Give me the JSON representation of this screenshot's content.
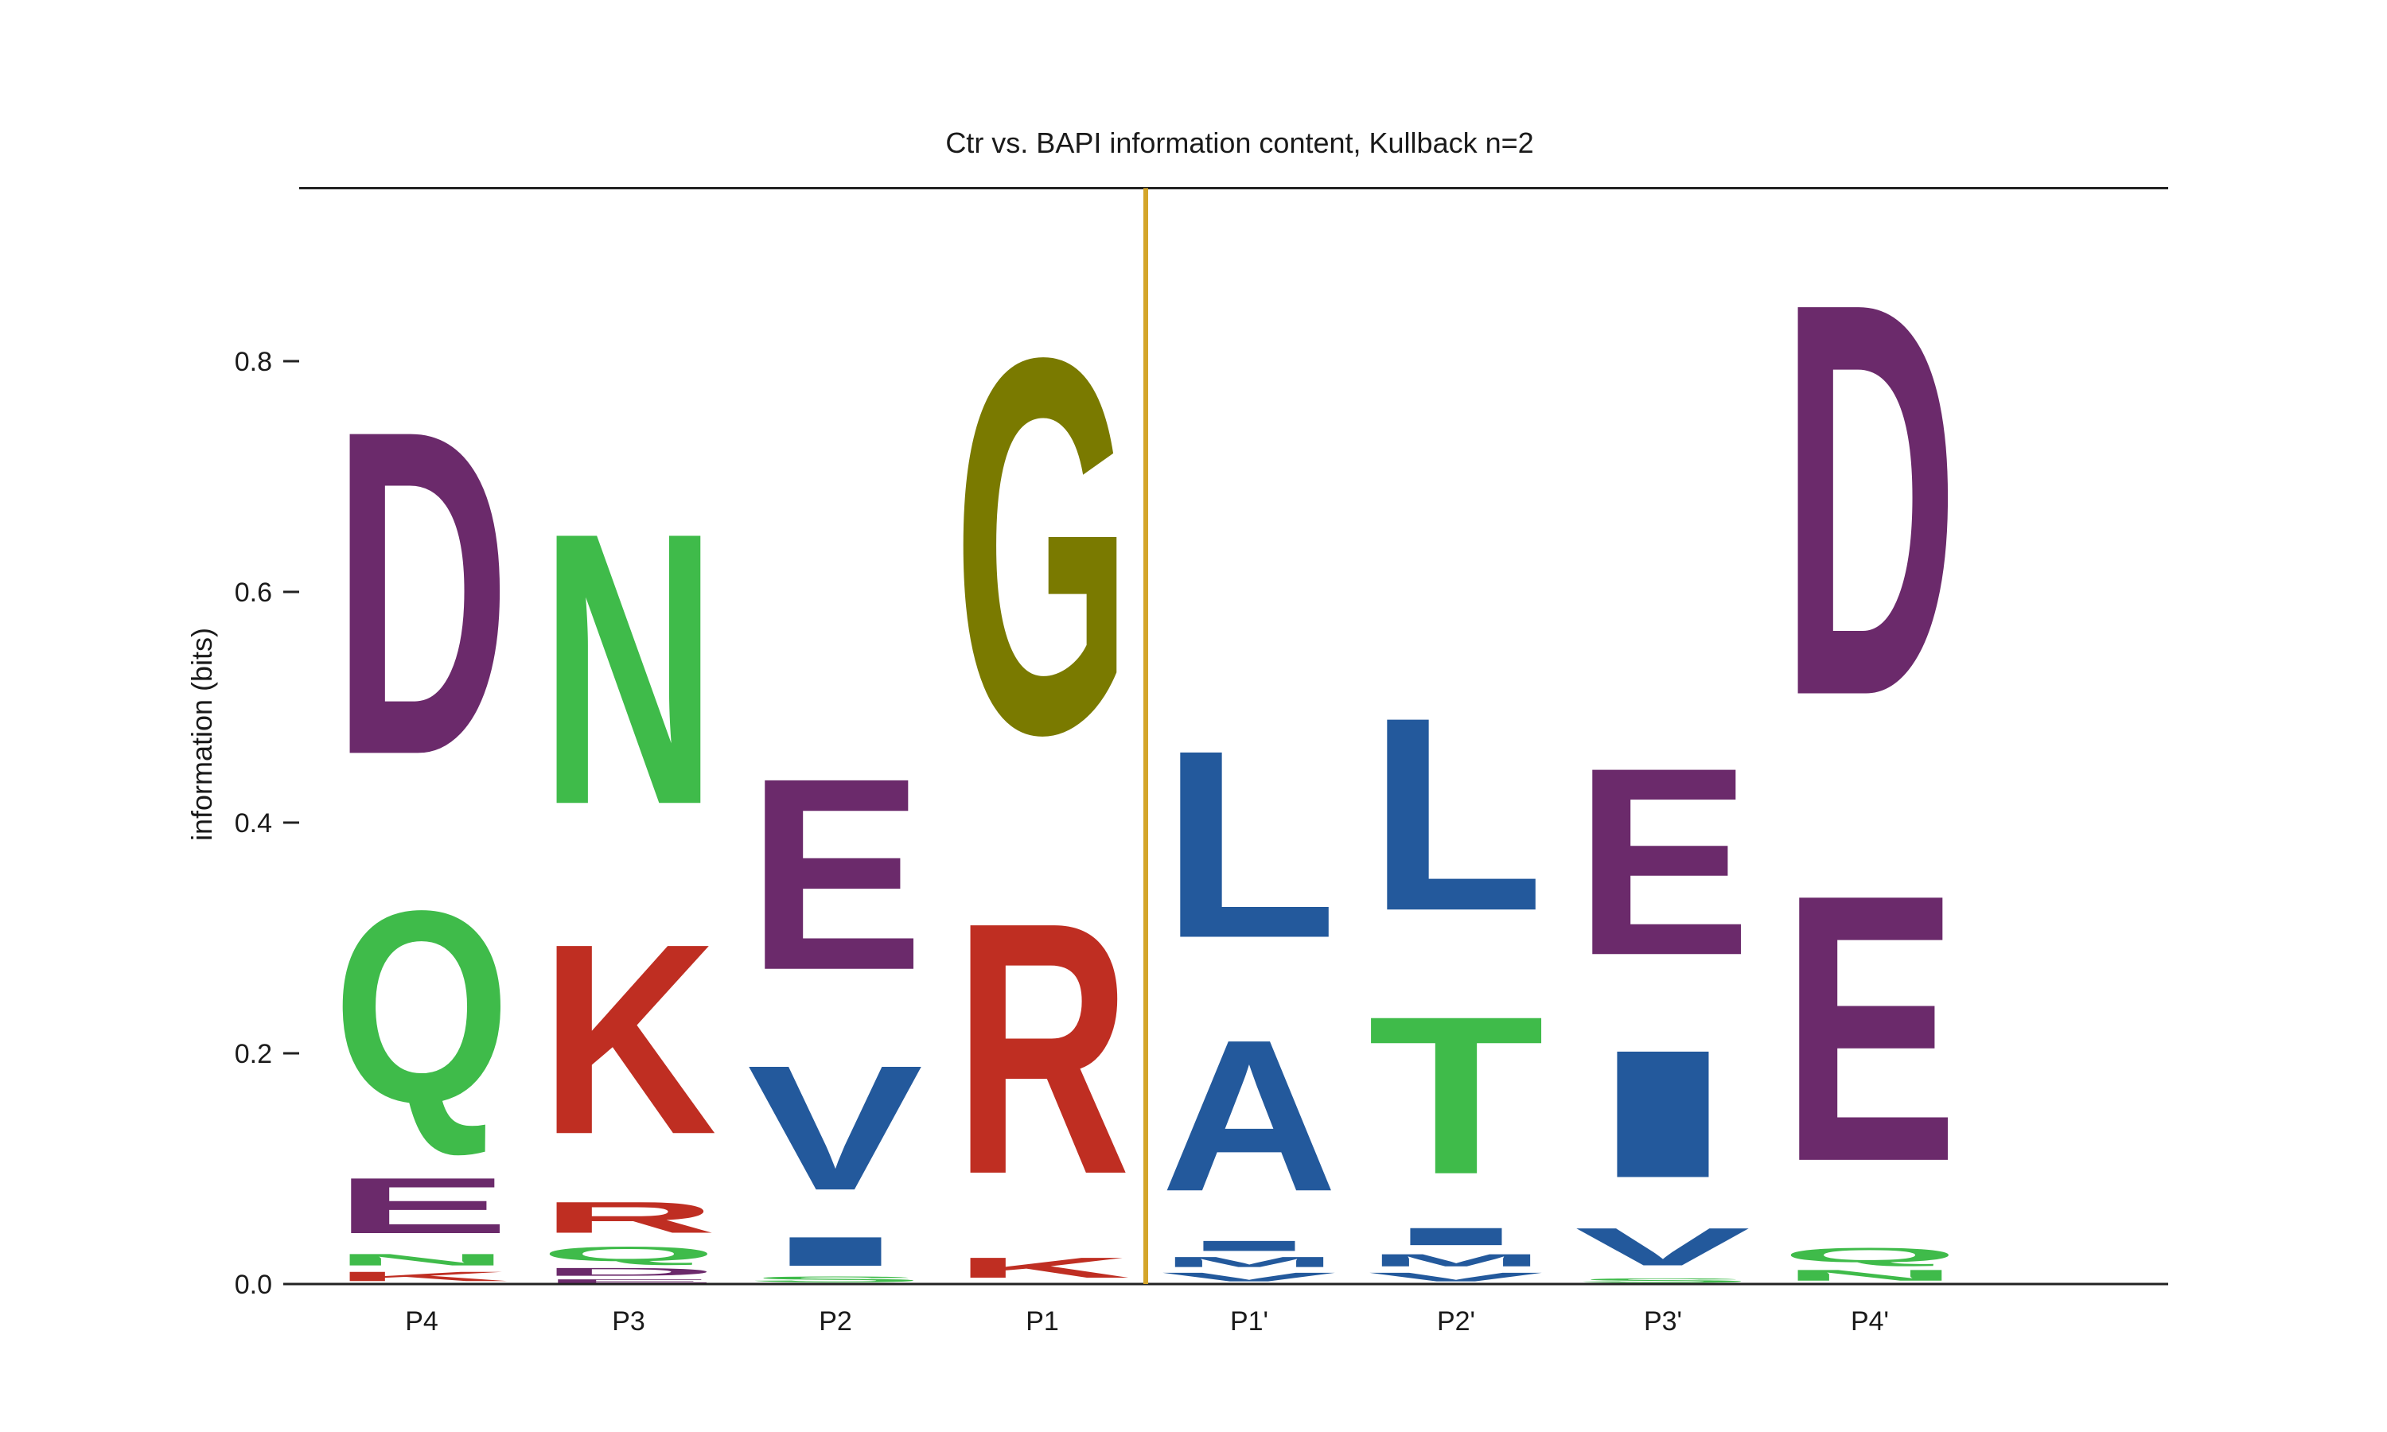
{
  "chart_data": {
    "type": "sequence-logo",
    "title": "Ctr vs. BAPI information content, Kullback n=2",
    "ylabel": "information (bits)",
    "xlabel": "",
    "ylim": [
      0,
      0.95
    ],
    "yticks": [
      "0.0",
      "0.2",
      "0.4",
      "0.6",
      "0.8"
    ],
    "positions": [
      "P4",
      "P3",
      "P2",
      "P1",
      "P1'",
      "P2'",
      "P3'",
      "P4'"
    ],
    "cleavage_marker": {
      "between": [
        "P1",
        "P1'"
      ],
      "color": "#d4a52a"
    },
    "colors": {
      "acidic": "#6b2a6b",
      "polar": "#3fbb4a",
      "basic": "#bf2e22",
      "hydrophobic": "#23599c",
      "glycine": "#7a7a00"
    },
    "stacks": [
      {
        "position": "P4",
        "letters": [
          {
            "letter": "K",
            "from": 0.0,
            "to": 0.013,
            "color": "#bf2e22"
          },
          {
            "letter": "N",
            "from": 0.013,
            "to": 0.029,
            "color": "#3fbb4a"
          },
          {
            "letter": "E",
            "from": 0.029,
            "to": 0.106,
            "color": "#6b2a6b"
          },
          {
            "letter": "Q",
            "from": 0.106,
            "to": 0.372,
            "color": "#3fbb4a"
          },
          {
            "letter": "D",
            "from": 0.372,
            "to": 0.822,
            "color": "#6b2a6b"
          }
        ]
      },
      {
        "position": "P3",
        "letters": [
          {
            "letter": "E",
            "from": 0.0,
            "to": 0.005,
            "color": "#6b2a6b"
          },
          {
            "letter": "D",
            "from": 0.005,
            "to": 0.016,
            "color": "#6b2a6b"
          },
          {
            "letter": "Q",
            "from": 0.016,
            "to": 0.036,
            "color": "#3fbb4a"
          },
          {
            "letter": "R",
            "from": 0.036,
            "to": 0.079,
            "color": "#bf2e22"
          },
          {
            "letter": "K",
            "from": 0.079,
            "to": 0.343,
            "color": "#bf2e22"
          },
          {
            "letter": "N",
            "from": 0.343,
            "to": 0.72,
            "color": "#3fbb4a"
          }
        ]
      },
      {
        "position": "P2",
        "letters": [
          {
            "letter": "S",
            "from": 0.0,
            "to": 0.008,
            "color": "#3fbb4a"
          },
          {
            "letter": "I",
            "from": 0.008,
            "to": 0.048,
            "color": "#23599c"
          },
          {
            "letter": "V",
            "from": 0.048,
            "to": 0.221,
            "color": "#23599c"
          },
          {
            "letter": "E",
            "from": 0.221,
            "to": 0.487,
            "color": "#6b2a6b"
          }
        ]
      },
      {
        "position": "P1",
        "letters": [
          {
            "letter": "K",
            "from": 0.0,
            "to": 0.028,
            "color": "#bf2e22"
          },
          {
            "letter": "R",
            "from": 0.028,
            "to": 0.377,
            "color": "#bf2e22"
          },
          {
            "letter": "G",
            "from": 0.377,
            "to": 0.897,
            "color": "#7a7a00"
          }
        ]
      },
      {
        "position": "P1'",
        "letters": [
          {
            "letter": "V",
            "from": 0.0,
            "to": 0.012,
            "color": "#23599c"
          },
          {
            "letter": "M",
            "from": 0.012,
            "to": 0.026,
            "color": "#23599c"
          },
          {
            "letter": "I",
            "from": 0.026,
            "to": 0.04,
            "color": "#23599c"
          },
          {
            "letter": "A",
            "from": 0.04,
            "to": 0.25,
            "color": "#23599c"
          },
          {
            "letter": "L",
            "from": 0.25,
            "to": 0.51,
            "color": "#23599c"
          }
        ]
      },
      {
        "position": "P2'",
        "letters": [
          {
            "letter": "V",
            "from": 0.0,
            "to": 0.012,
            "color": "#23599c"
          },
          {
            "letter": "M",
            "from": 0.012,
            "to": 0.029,
            "color": "#23599c"
          },
          {
            "letter": "I",
            "from": 0.029,
            "to": 0.053,
            "color": "#23599c"
          },
          {
            "letter": "T",
            "from": 0.053,
            "to": 0.272,
            "color": "#3fbb4a"
          },
          {
            "letter": "L",
            "from": 0.272,
            "to": 0.54,
            "color": "#23599c"
          }
        ]
      },
      {
        "position": "P3'",
        "letters": [
          {
            "letter": "S",
            "from": 0.0,
            "to": 0.006,
            "color": "#3fbb4a"
          },
          {
            "letter": "V",
            "from": 0.006,
            "to": 0.058,
            "color": "#23599c"
          },
          {
            "letter": "I",
            "from": 0.058,
            "to": 0.235,
            "color": "#23599c"
          },
          {
            "letter": "E",
            "from": 0.235,
            "to": 0.495,
            "color": "#6b2a6b"
          }
        ]
      },
      {
        "position": "P4'",
        "letters": [
          {
            "letter": "N",
            "from": 0.0,
            "to": 0.015,
            "color": "#3fbb4a"
          },
          {
            "letter": "Q",
            "from": 0.015,
            "to": 0.035,
            "color": "#3fbb4a"
          },
          {
            "letter": "E",
            "from": 0.035,
            "to": 0.405,
            "color": "#6b2a6b"
          },
          {
            "letter": "D",
            "from": 0.405,
            "to": 0.95,
            "color": "#6b2a6b"
          }
        ]
      }
    ]
  }
}
